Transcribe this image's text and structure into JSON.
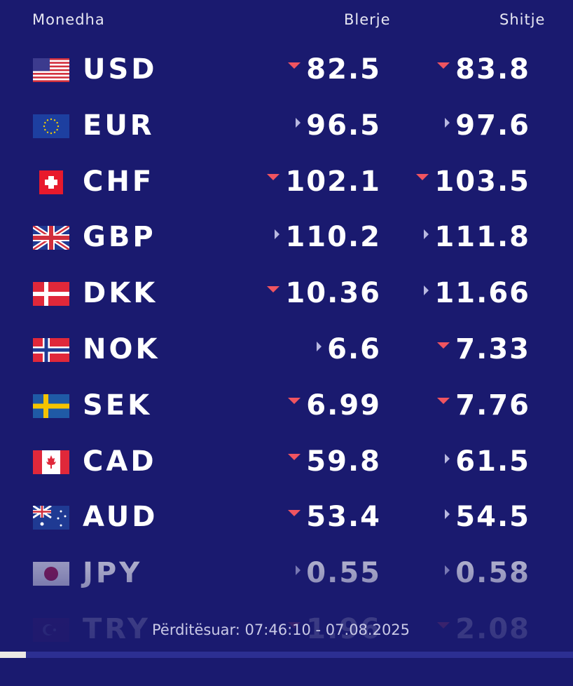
{
  "header": {
    "currency": "Monedha",
    "buy": "Blerje",
    "sell": "Shitje"
  },
  "colors": {
    "background": "#1a1a6f",
    "down": "#f05460",
    "flat": "#b8b8e0"
  },
  "rates": [
    {
      "code": "USD",
      "flag": "us-flag-icon",
      "buy": "82.5",
      "buy_trend": "down",
      "sell": "83.8",
      "sell_trend": "down"
    },
    {
      "code": "EUR",
      "flag": "eu-flag-icon",
      "buy": "96.5",
      "buy_trend": "flat",
      "sell": "97.6",
      "sell_trend": "flat"
    },
    {
      "code": "CHF",
      "flag": "ch-flag-icon",
      "buy": "102.1",
      "buy_trend": "down",
      "sell": "103.5",
      "sell_trend": "down"
    },
    {
      "code": "GBP",
      "flag": "gb-flag-icon",
      "buy": "110.2",
      "buy_trend": "flat",
      "sell": "111.8",
      "sell_trend": "flat"
    },
    {
      "code": "DKK",
      "flag": "dk-flag-icon",
      "buy": "10.36",
      "buy_trend": "down",
      "sell": "11.66",
      "sell_trend": "flat"
    },
    {
      "code": "NOK",
      "flag": "no-flag-icon",
      "buy": "6.6",
      "buy_trend": "flat",
      "sell": "7.33",
      "sell_trend": "down"
    },
    {
      "code": "SEK",
      "flag": "se-flag-icon",
      "buy": "6.99",
      "buy_trend": "down",
      "sell": "7.76",
      "sell_trend": "down"
    },
    {
      "code": "CAD",
      "flag": "ca-flag-icon",
      "buy": "59.8",
      "buy_trend": "down",
      "sell": "61.5",
      "sell_trend": "flat"
    },
    {
      "code": "AUD",
      "flag": "au-flag-icon",
      "buy": "53.4",
      "buy_trend": "down",
      "sell": "54.5",
      "sell_trend": "flat"
    },
    {
      "code": "JPY",
      "flag": "jp-flag-icon",
      "buy": "0.55",
      "buy_trend": "flat",
      "sell": "0.58",
      "sell_trend": "flat"
    },
    {
      "code": "TRY",
      "flag": "tr-flag-icon",
      "buy": "1.96",
      "buy_trend": "down",
      "sell": "2.08",
      "sell_trend": "down"
    }
  ],
  "footer": "Përditësuar: 07:46:10 - 07.08.2025"
}
